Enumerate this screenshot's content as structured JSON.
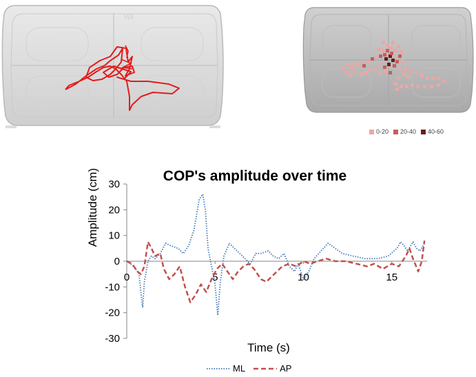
{
  "boards": {
    "logo_text": "Wii",
    "heatmap_legend": [
      {
        "label": "0-20",
        "color": "#e8a8a6"
      },
      {
        "label": "20-40",
        "color": "#c75e5c"
      },
      {
        "label": "40-60",
        "color": "#6b1c1c"
      }
    ]
  },
  "chart_data": {
    "type": "line",
    "title": "COP's amplitude over time",
    "xlabel": "Time (s)",
    "ylabel": "Amplitude (cm)",
    "xlim": [
      0,
      17
    ],
    "ylim": [
      -30,
      30
    ],
    "x_ticks": [
      0,
      5,
      10,
      15
    ],
    "y_ticks": [
      30,
      20,
      10,
      0,
      -10,
      -20,
      -30
    ],
    "grid": false,
    "legend_position": "bottom",
    "series": [
      {
        "name": "ML",
        "color": "#4f81bd",
        "style": "dotted",
        "points": [
          [
            0,
            0
          ],
          [
            0.4,
            -2
          ],
          [
            0.7,
            -5
          ],
          [
            0.8,
            -12
          ],
          [
            0.9,
            -18
          ],
          [
            1.0,
            -8
          ],
          [
            1.2,
            0
          ],
          [
            1.4,
            2
          ],
          [
            1.6,
            1
          ],
          [
            1.9,
            3
          ],
          [
            2.2,
            7
          ],
          [
            2.5,
            6
          ],
          [
            2.9,
            5
          ],
          [
            3.2,
            3
          ],
          [
            3.5,
            6
          ],
          [
            3.8,
            12
          ],
          [
            4.1,
            24
          ],
          [
            4.3,
            26
          ],
          [
            4.45,
            20
          ],
          [
            4.6,
            5
          ],
          [
            4.8,
            -2
          ],
          [
            5.0,
            -9
          ],
          [
            5.15,
            -21
          ],
          [
            5.3,
            -8
          ],
          [
            5.5,
            2
          ],
          [
            5.8,
            7
          ],
          [
            6.1,
            5
          ],
          [
            6.4,
            3
          ],
          [
            6.7,
            1
          ],
          [
            7.0,
            -1
          ],
          [
            7.3,
            3
          ],
          [
            7.6,
            3
          ],
          [
            8.0,
            4
          ],
          [
            8.3,
            2
          ],
          [
            8.6,
            1
          ],
          [
            8.9,
            3
          ],
          [
            9.2,
            -2
          ],
          [
            9.5,
            -4
          ],
          [
            9.7,
            -1
          ],
          [
            10.0,
            -7
          ],
          [
            10.3,
            -4
          ],
          [
            10.6,
            1
          ],
          [
            11.0,
            4
          ],
          [
            11.4,
            7
          ],
          [
            11.8,
            5
          ],
          [
            12.2,
            3
          ],
          [
            12.8,
            2
          ],
          [
            13.5,
            1
          ],
          [
            14.2,
            1
          ],
          [
            14.8,
            2
          ],
          [
            15.3,
            5
          ],
          [
            15.5,
            7.5
          ],
          [
            15.7,
            6
          ],
          [
            15.9,
            4
          ],
          [
            16.2,
            7.5
          ],
          [
            16.4,
            5
          ],
          [
            16.6,
            4
          ],
          [
            16.85,
            7
          ]
        ]
      },
      {
        "name": "AP",
        "color": "#c0504d",
        "style": "dashed",
        "points": [
          [
            0,
            0
          ],
          [
            0.3,
            -1
          ],
          [
            0.6,
            -4
          ],
          [
            0.8,
            -5
          ],
          [
            1.0,
            -2
          ],
          [
            1.2,
            7.5
          ],
          [
            1.4,
            5
          ],
          [
            1.6,
            2
          ],
          [
            1.9,
            3
          ],
          [
            2.1,
            -3
          ],
          [
            2.4,
            -7
          ],
          [
            2.7,
            -5
          ],
          [
            3.0,
            -2
          ],
          [
            3.3,
            -10
          ],
          [
            3.6,
            -16
          ],
          [
            3.9,
            -13
          ],
          [
            4.2,
            -9
          ],
          [
            4.5,
            -12
          ],
          [
            4.8,
            -7
          ],
          [
            5.1,
            -3
          ],
          [
            5.4,
            -1
          ],
          [
            5.7,
            -4
          ],
          [
            6.0,
            -7
          ],
          [
            6.3,
            -4
          ],
          [
            6.6,
            -2
          ],
          [
            6.9,
            -1
          ],
          [
            7.2,
            -3
          ],
          [
            7.6,
            -7
          ],
          [
            7.9,
            -8
          ],
          [
            8.2,
            -6
          ],
          [
            8.5,
            -4
          ],
          [
            8.8,
            -2
          ],
          [
            9.2,
            -1
          ],
          [
            9.6,
            -2
          ],
          [
            10.0,
            0
          ],
          [
            10.4,
            -1
          ],
          [
            10.8,
            0
          ],
          [
            11.3,
            1
          ],
          [
            11.8,
            0
          ],
          [
            12.4,
            0
          ],
          [
            13.0,
            -1
          ],
          [
            13.6,
            -2
          ],
          [
            14.0,
            -1
          ],
          [
            14.5,
            -3
          ],
          [
            15.0,
            -1
          ],
          [
            15.4,
            -2
          ],
          [
            15.8,
            2
          ],
          [
            16.0,
            5
          ],
          [
            16.2,
            1
          ],
          [
            16.5,
            -4
          ],
          [
            16.7,
            0
          ],
          [
            16.85,
            8
          ]
        ]
      }
    ]
  }
}
